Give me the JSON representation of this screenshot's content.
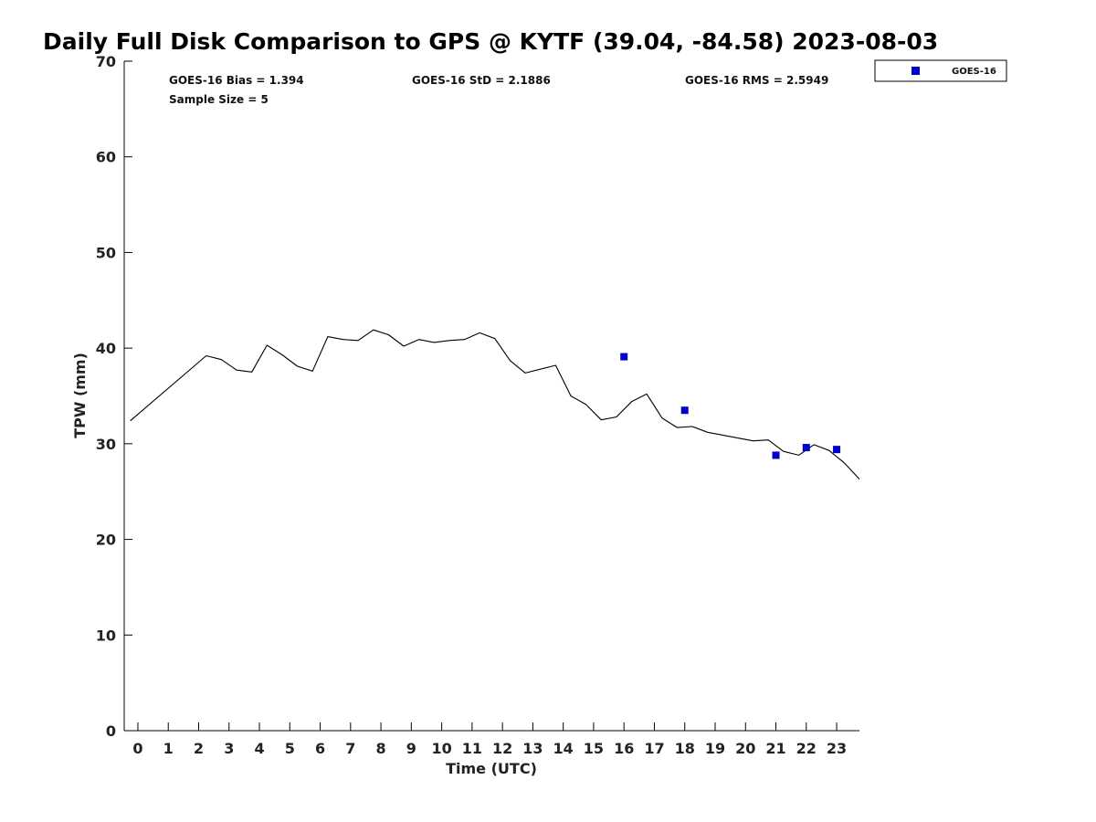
{
  "chart_data": {
    "type": "line",
    "title": "Daily Full Disk Comparison to GPS @ KYTF (39.04, -84.58) 2023-08-03",
    "xlabel": "Time (UTC)",
    "ylabel": "TPW (mm)",
    "xlim": [
      -0.45,
      23.75
    ],
    "ylim": [
      0,
      70
    ],
    "x_ticks": [
      0,
      1,
      2,
      3,
      4,
      5,
      6,
      7,
      8,
      9,
      10,
      11,
      12,
      13,
      14,
      15,
      16,
      17,
      18,
      19,
      20,
      21,
      22,
      23
    ],
    "y_ticks": [
      0,
      10,
      20,
      30,
      40,
      50,
      60,
      70
    ],
    "grid": false,
    "legend_position": "top-right",
    "stats": {
      "bias": "GOES-16 Bias = 1.394",
      "std": "GOES-16 StD = 2.1886",
      "rms": "GOES-16 RMS = 2.5949",
      "sample_size": "Sample Size = 5"
    },
    "series": [
      {
        "type": "line",
        "color": "#000000",
        "x": [
          -0.25,
          2.25,
          2.75,
          3.25,
          3.75,
          4.25,
          4.75,
          5.25,
          5.75,
          6.25,
          6.75,
          7.25,
          7.75,
          8.25,
          8.75,
          9.25,
          9.75,
          10.25,
          10.75,
          11.25,
          11.75,
          12.25,
          12.75,
          13.25,
          13.75,
          14.25,
          14.75,
          15.25,
          15.75,
          16.25,
          16.75,
          17.25,
          17.75,
          18.25,
          18.75,
          19.25,
          19.75,
          20.25,
          20.75,
          21.25,
          21.75,
          22.25,
          22.75,
          23.25,
          23.75
        ],
        "y": [
          32.4,
          39.2,
          38.8,
          37.7,
          37.5,
          40.3,
          39.3,
          38.1,
          37.6,
          41.2,
          40.9,
          40.8,
          41.9,
          41.4,
          40.2,
          40.9,
          40.6,
          40.8,
          40.9,
          41.6,
          41.0,
          38.7,
          37.4,
          37.8,
          38.2,
          35.0,
          34.1,
          32.5,
          32.8,
          34.4,
          35.2,
          32.7,
          31.7,
          31.8,
          31.2,
          30.9,
          30.6,
          30.3,
          30.4,
          29.2,
          28.8,
          29.9,
          29.3,
          28.0,
          26.3
        ]
      },
      {
        "type": "scatter",
        "name": "GOES-16",
        "color": "#0000cc",
        "marker": "square",
        "x": [
          16,
          18,
          21,
          22,
          23
        ],
        "y": [
          39.1,
          33.5,
          28.8,
          29.6,
          29.4
        ]
      }
    ]
  }
}
